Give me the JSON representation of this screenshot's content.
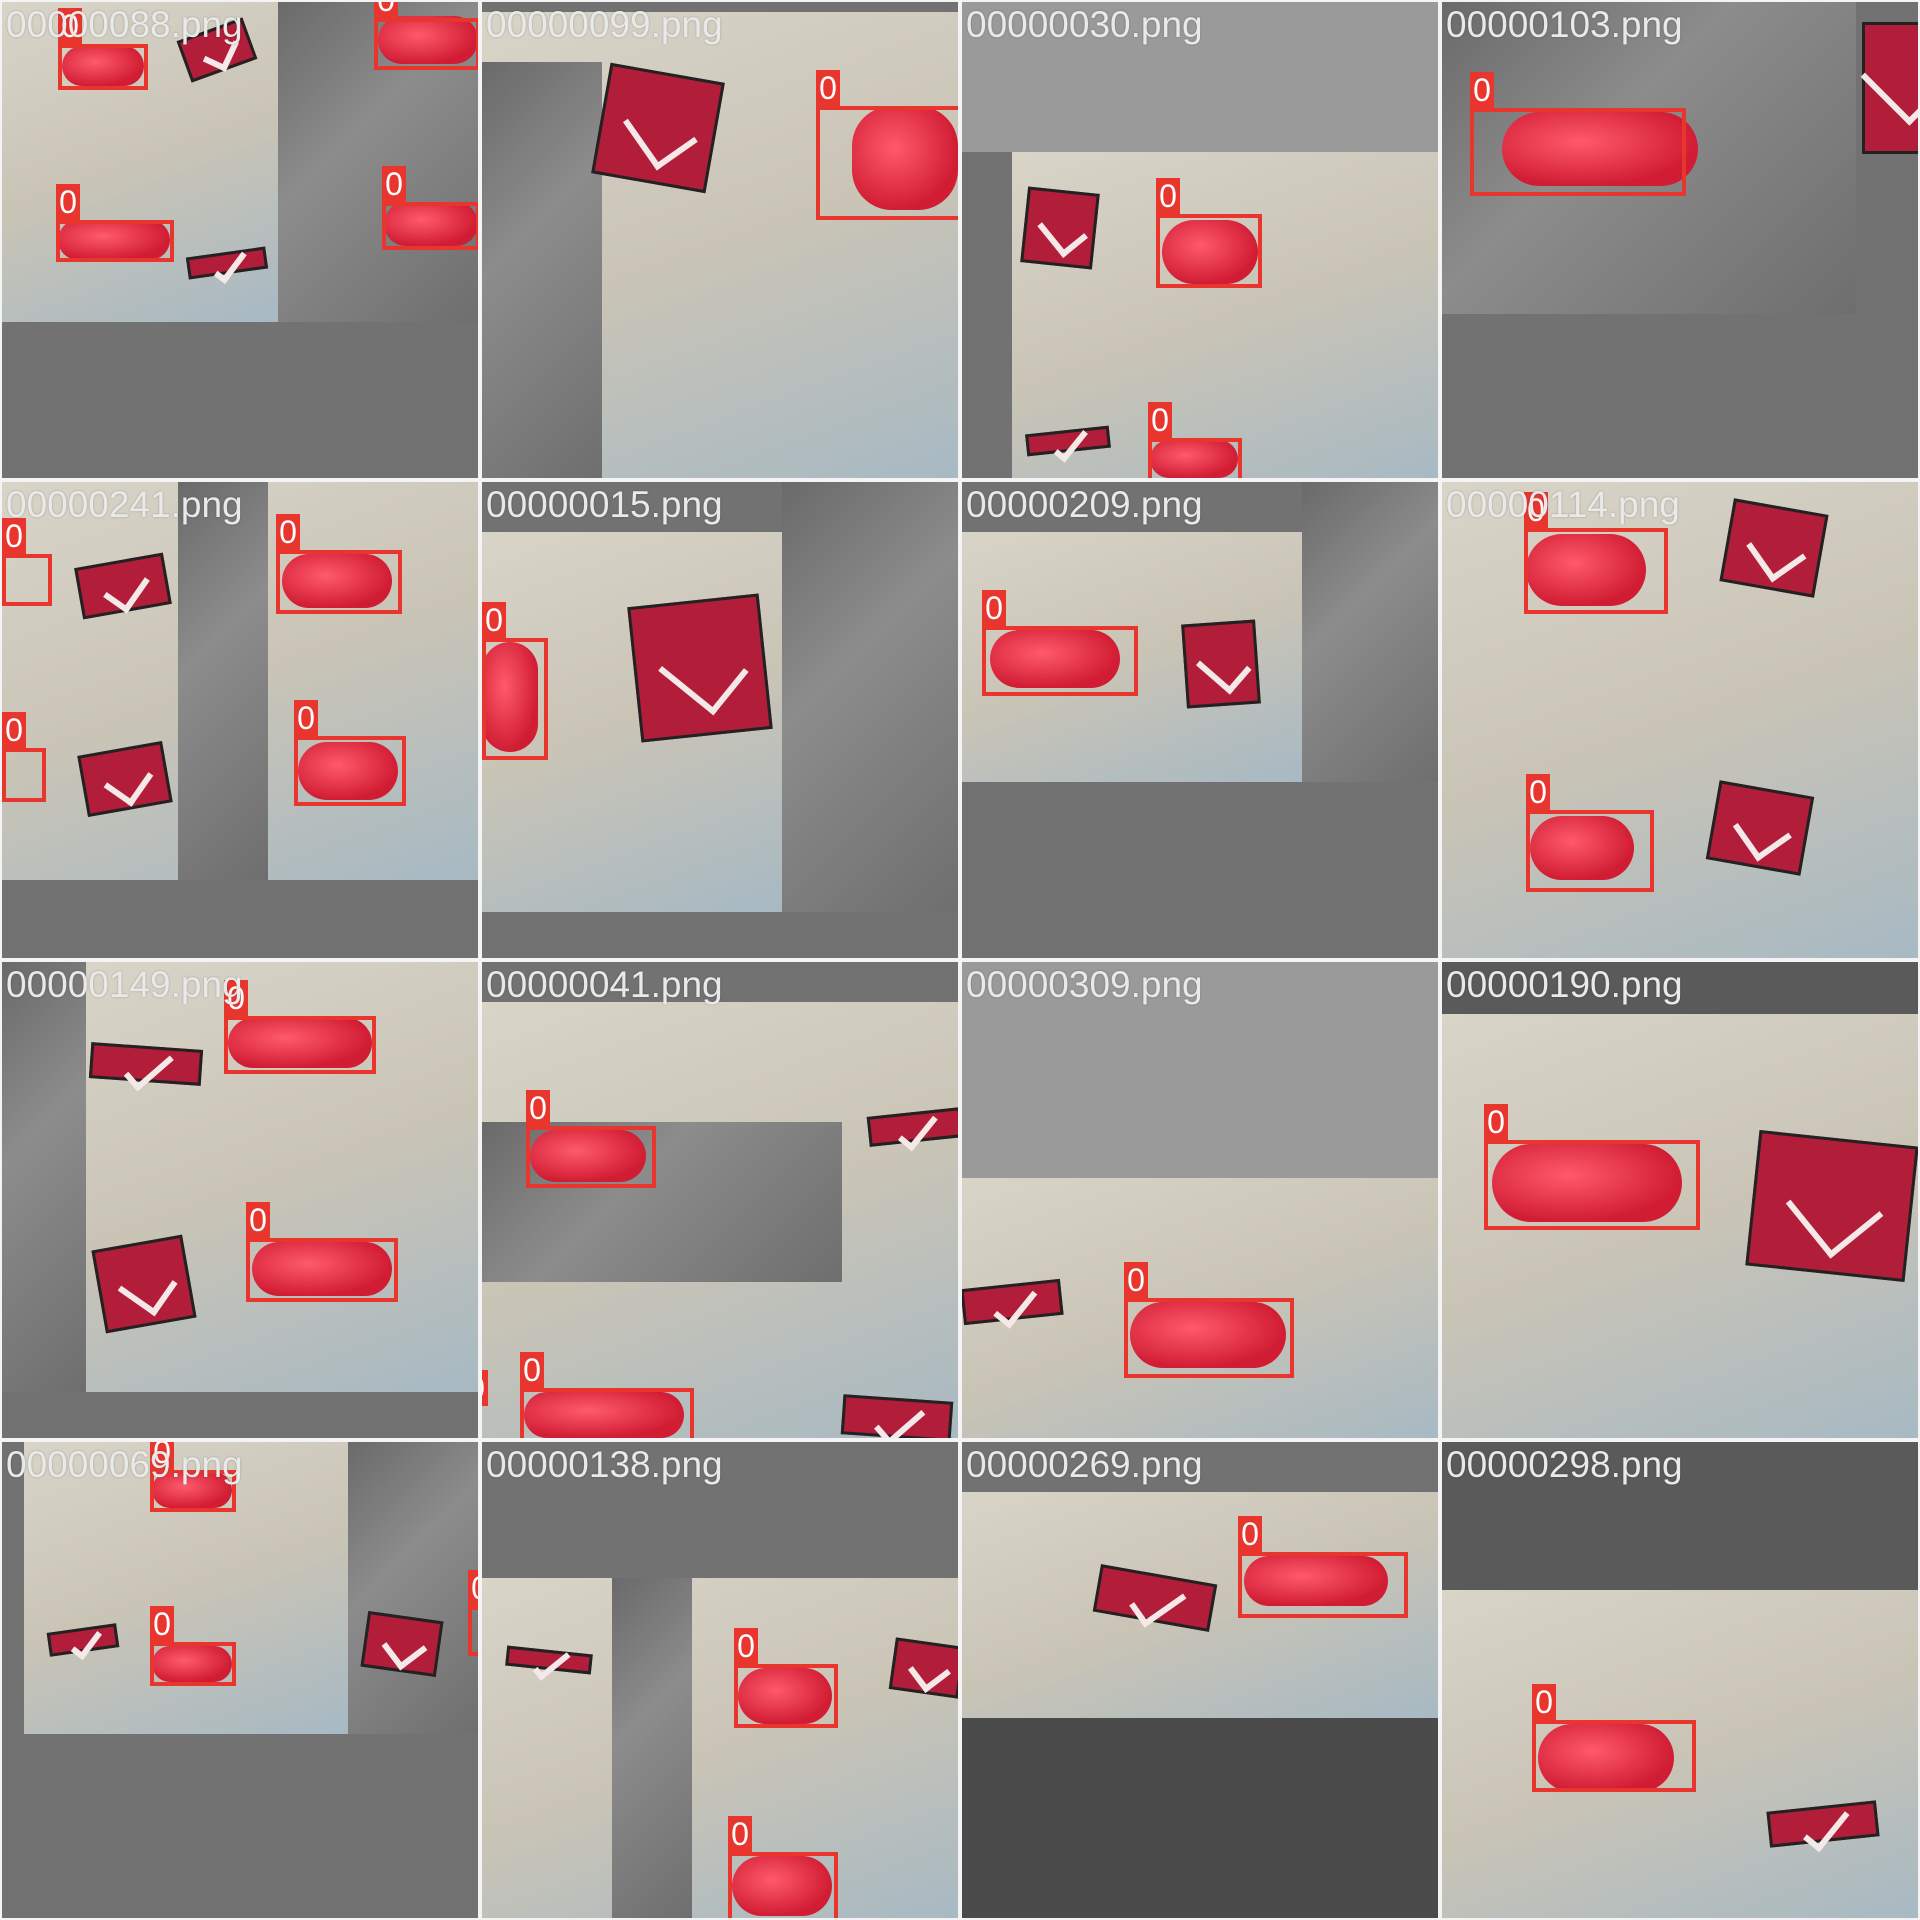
{
  "tiles": [
    {
      "filename": "00000088.png",
      "boxes": [
        {
          "label": "0"
        },
        {
          "label": "0"
        },
        {
          "label": "0"
        },
        {
          "label": "0"
        }
      ]
    },
    {
      "filename": "00000099.png",
      "boxes": [
        {
          "label": "0"
        }
      ]
    },
    {
      "filename": "00000030.png",
      "boxes": [
        {
          "label": "0"
        },
        {
          "label": "0"
        }
      ]
    },
    {
      "filename": "00000103.png",
      "boxes": [
        {
          "label": "0"
        }
      ]
    },
    {
      "filename": "00000241.png",
      "boxes": [
        {
          "label": "0"
        },
        {
          "label": "0"
        },
        {
          "label": "0"
        },
        {
          "label": "0"
        }
      ]
    },
    {
      "filename": "00000015.png",
      "boxes": [
        {
          "label": "0"
        }
      ]
    },
    {
      "filename": "00000209.png",
      "boxes": [
        {
          "label": "0"
        }
      ]
    },
    {
      "filename": "00000114.png",
      "boxes": [
        {
          "label": "0"
        },
        {
          "label": "0"
        }
      ]
    },
    {
      "filename": "00000149.png",
      "boxes": [
        {
          "label": "0"
        },
        {
          "label": "0"
        }
      ]
    },
    {
      "filename": "00000041.png",
      "boxes": [
        {
          "label": "0"
        },
        {
          "label": "0"
        },
        {
          "label": "0"
        }
      ]
    },
    {
      "filename": "00000309.png",
      "boxes": [
        {
          "label": "0"
        }
      ]
    },
    {
      "filename": "00000190.png",
      "boxes": [
        {
          "label": "0"
        }
      ]
    },
    {
      "filename": "00000069.png",
      "boxes": [
        {
          "label": "0"
        },
        {
          "label": "0"
        },
        {
          "label": "0"
        }
      ]
    },
    {
      "filename": "00000138.png",
      "boxes": [
        {
          "label": "0"
        },
        {
          "label": "0"
        }
      ]
    },
    {
      "filename": "00000269.png",
      "boxes": [
        {
          "label": "0"
        }
      ]
    },
    {
      "filename": "00000298.png",
      "boxes": [
        {
          "label": "0"
        }
      ]
    }
  ],
  "colors": {
    "box": "#e8362f",
    "label_text": "#ffffff",
    "filename_text": "#e9e9e9",
    "pad": "#727272"
  }
}
